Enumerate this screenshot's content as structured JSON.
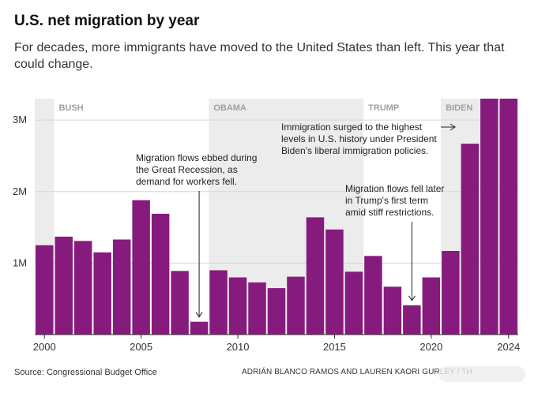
{
  "title": "U.S. net migration by year",
  "subtitle": "For decades, more immigrants have moved to the United States than left. This year that could change.",
  "source": "Source: Congressional Budget Office",
  "credit": "ADRIÁN BLANCO RAMOS AND LAUREN KAORI GURLEY / TH",
  "chart_data": {
    "type": "bar",
    "categories": [
      "2000",
      "2001",
      "2002",
      "2003",
      "2004",
      "2005",
      "2006",
      "2007",
      "2008",
      "2009",
      "2010",
      "2011",
      "2012",
      "2013",
      "2014",
      "2015",
      "2016",
      "2017",
      "2018",
      "2019",
      "2020",
      "2021",
      "2022",
      "2023",
      "2024"
    ],
    "values": [
      1.25,
      1.37,
      1.31,
      1.15,
      1.33,
      1.88,
      1.69,
      0.89,
      0.18,
      0.9,
      0.8,
      0.73,
      0.65,
      0.81,
      1.64,
      1.47,
      0.88,
      1.1,
      0.67,
      0.41,
      0.8,
      1.17,
      2.67,
      3.3,
      3.3
    ],
    "ylim": [
      0,
      3.3
    ],
    "yticks": [
      1,
      2,
      3
    ],
    "ytick_labels": [
      "1M",
      "2M",
      "3M"
    ],
    "xtick_years": [
      "2000",
      "2005",
      "2010",
      "2015",
      "2020",
      "2024"
    ],
    "bar_color": "#861b7d",
    "band_color": "#ececec",
    "band_label_color": "#a0a0a0",
    "eras": [
      {
        "label": "BUSH",
        "start": 2001,
        "end": 2009,
        "shaded": false
      },
      {
        "label": "OBAMA",
        "start": 2009,
        "end": 2017,
        "shaded": true
      },
      {
        "label": "TRUMP",
        "start": 2017,
        "end": 2021,
        "shaded": false
      },
      {
        "label": "BIDEN",
        "start": 2021,
        "end": 2025,
        "shaded": true
      }
    ],
    "annotations": [
      {
        "year": 2008,
        "lines": [
          "Migration flows ebbed during",
          "the Great Recession, as",
          "demand for workers fell."
        ]
      },
      {
        "year": 2019,
        "lines": [
          "Migration flows fell later",
          "in Trump's first term",
          "amid stiff restrictions."
        ]
      },
      {
        "year": 2023,
        "lines": [
          "Immigration surged to the highest",
          "levels in U.S. history under President",
          "Biden's liberal immigration policies."
        ]
      }
    ],
    "grid": true
  }
}
